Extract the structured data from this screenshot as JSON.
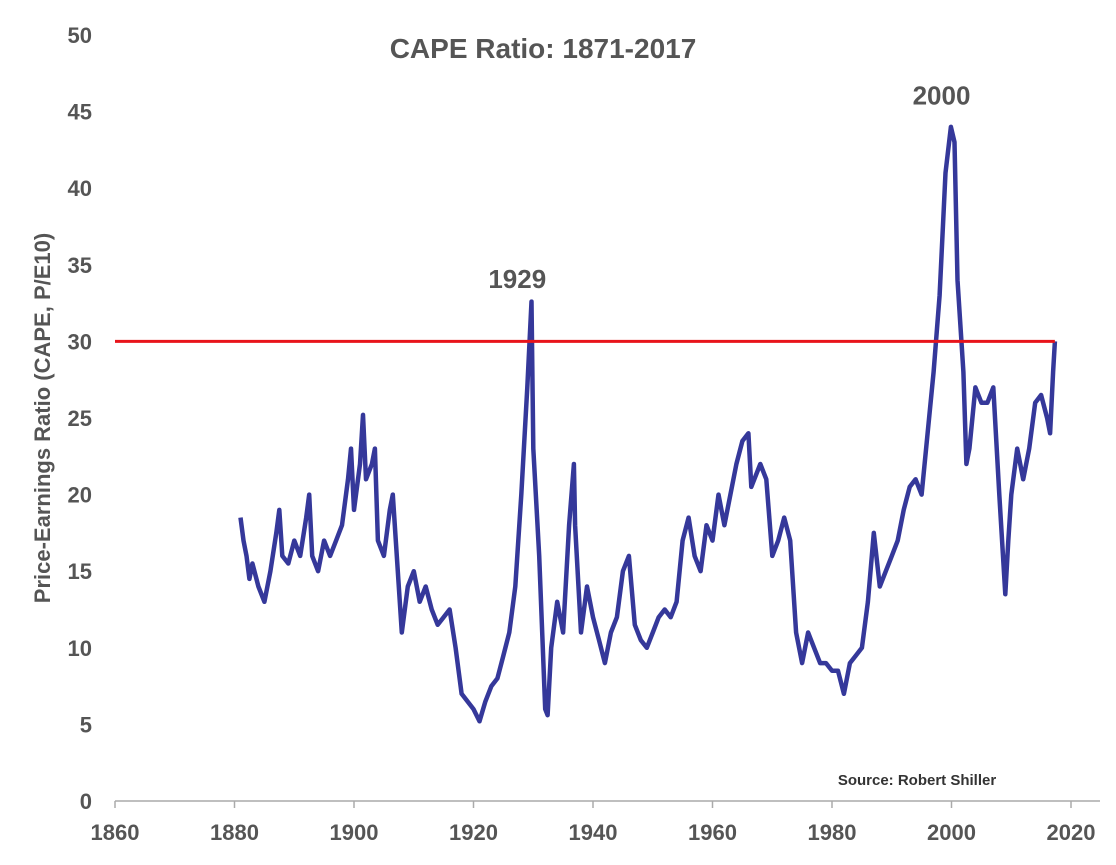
{
  "chart_data": {
    "type": "line",
    "title": "CAPE Ratio: 1871-2017",
    "xlabel": "",
    "ylabel": "Price-Earnings Ratio (CAPE, P/E10)",
    "xlim": [
      1860,
      2020
    ],
    "ylim": [
      0,
      50
    ],
    "xticks": [
      1860,
      1880,
      1900,
      1920,
      1940,
      1960,
      1980,
      2000,
      2020
    ],
    "yticks": [
      0,
      5,
      10,
      15,
      20,
      25,
      30,
      35,
      40,
      45,
      50
    ],
    "grid": false,
    "series_color": "#35389a",
    "reference_line": {
      "y": 30,
      "color": "#e8141b",
      "x_end": 2017.3
    },
    "annotations": [
      {
        "text": "1929",
        "x": 1929,
        "y": 34
      },
      {
        "text": "2000",
        "x": 2000,
        "y": 46
      }
    ],
    "source": "Source: Robert Shiller",
    "series": [
      {
        "name": "CAPE",
        "x": [
          1881,
          1881.5,
          1882,
          1882.5,
          1883,
          1884,
          1885,
          1886,
          1887,
          1887.5,
          1888,
          1889,
          1890,
          1891,
          1892,
          1892.5,
          1893,
          1894,
          1895,
          1896,
          1897,
          1898,
          1899,
          1899.5,
          1900,
          1901,
          1901.5,
          1902,
          1903,
          1903.5,
          1904,
          1905,
          1906,
          1906.5,
          1907,
          1908,
          1909,
          1910,
          1911,
          1912,
          1913,
          1914,
          1915,
          1916,
          1917,
          1918,
          1919,
          1920,
          1921,
          1922,
          1923,
          1924,
          1925,
          1926,
          1927,
          1928,
          1929,
          1929.7,
          1930,
          1931,
          1932,
          1932.4,
          1933,
          1934,
          1935,
          1936,
          1936.8,
          1937,
          1938,
          1939,
          1940,
          1941,
          1942,
          1943,
          1944,
          1945,
          1946,
          1947,
          1948,
          1949,
          1950,
          1951,
          1952,
          1953,
          1954,
          1955,
          1956,
          1957,
          1958,
          1959,
          1960,
          1961,
          1962,
          1963,
          1964,
          1965,
          1966,
          1966.5,
          1967,
          1968,
          1969,
          1970,
          1971,
          1972,
          1973,
          1974,
          1975,
          1976,
          1977,
          1978,
          1979,
          1980,
          1981,
          1982,
          1983,
          1984,
          1985,
          1986,
          1987,
          1988,
          1989,
          1990,
          1991,
          1992,
          1993,
          1994,
          1995,
          1996,
          1997,
          1998,
          1999,
          1999.9,
          2000.5,
          2001,
          2002,
          2002.5,
          2003,
          2004,
          2005,
          2006,
          2007,
          2008,
          2009,
          2009.5,
          2010,
          2011,
          2012,
          2013,
          2014,
          2015,
          2016,
          2016.5,
          2017,
          2017.3
        ],
        "values": [
          18.5,
          17,
          16,
          14.5,
          15.5,
          14,
          13,
          15,
          17.5,
          19,
          16,
          15.5,
          17,
          16,
          18.5,
          20,
          16,
          15,
          17,
          16,
          17,
          18,
          21,
          23,
          19,
          22,
          25.2,
          21,
          22,
          23,
          17,
          16,
          19,
          20,
          17,
          11,
          14,
          15,
          13,
          14,
          12.5,
          11.5,
          12,
          12.5,
          10,
          7,
          6.5,
          6,
          5.2,
          6.5,
          7.5,
          8,
          9.5,
          11,
          14,
          20,
          27,
          32.6,
          23,
          16,
          6,
          5.6,
          10,
          13,
          11,
          18,
          22,
          18,
          11,
          14,
          12,
          10.5,
          9,
          11,
          12,
          15,
          16,
          11.5,
          10.5,
          10,
          11,
          12,
          12.5,
          12,
          13,
          17,
          18.5,
          16,
          15,
          18,
          17,
          20,
          18,
          20,
          22,
          23.5,
          24,
          20.5,
          21,
          22,
          21,
          16,
          17,
          18.5,
          17,
          11,
          9,
          11,
          10,
          9,
          9,
          8.5,
          8.5,
          7,
          9,
          9.5,
          10,
          13,
          17.5,
          14,
          15,
          16,
          17,
          19,
          20.5,
          21,
          20,
          24,
          28,
          33,
          41,
          44,
          43,
          34,
          28,
          22,
          23,
          27,
          26,
          26,
          27,
          20,
          13.5,
          17,
          20,
          23,
          21,
          23,
          26,
          26.5,
          25,
          24,
          28,
          30
        ]
      }
    ]
  }
}
